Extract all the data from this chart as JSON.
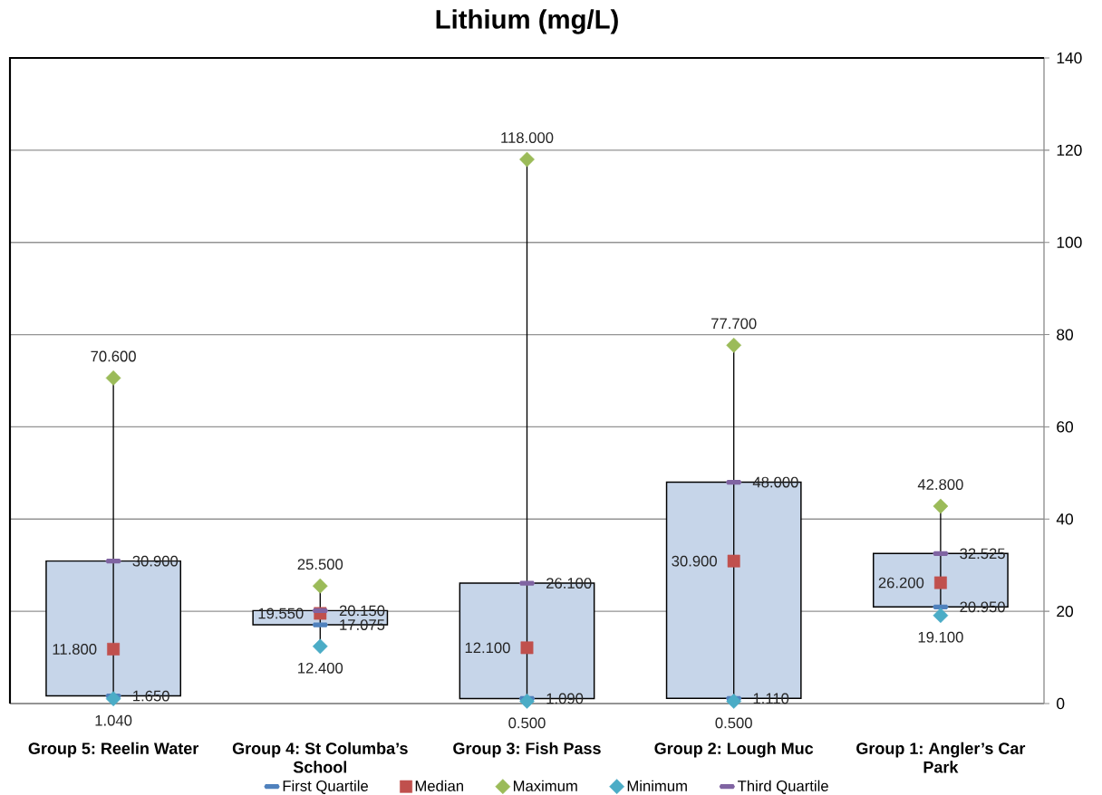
{
  "chart_data": {
    "type": "box",
    "title": "Lithium (mg/L)",
    "categories": [
      "Group 5: Reelin Water",
      "Group 4: St Columba’s School",
      "Group 3: Fish Pass",
      "Group 2: Lough Muc",
      "Group 1: Angler’s Car Park"
    ],
    "color": "#c6d5e9",
    "boxes": [
      {
        "low": 1.04,
        "q1": 1.65,
        "q3": 30.9,
        "high": 70.6
      },
      {
        "low": 12.4,
        "q1": 17.075,
        "q3": 20.15,
        "high": 25.5
      },
      {
        "low": 0.5,
        "q1": 1.09,
        "q3": 26.1,
        "high": 118
      },
      {
        "low": 0.5,
        "q1": 1.11,
        "q3": 48,
        "high": 77.7
      },
      {
        "low": 19.1,
        "q1": 20.95,
        "q3": 32.525,
        "high": 42.8
      }
    ],
    "series": [
      {
        "name": "First Quartile",
        "type": "scatter",
        "color": "#4f81bd",
        "values": [
          1.65,
          17.075,
          1.09,
          1.11,
          20.95
        ],
        "value_labels": [
          "1.650",
          "17.075",
          "1.090",
          "1.110",
          "20.950"
        ]
      },
      {
        "name": "Median",
        "type": "scatter",
        "color": "#c0504d",
        "marker": "square",
        "values": [
          11.8,
          19.55,
          12.1,
          30.9,
          26.2
        ],
        "value_labels": [
          "11.800",
          "19.550",
          "12.100",
          "30.900",
          "26.200"
        ]
      },
      {
        "name": "Maximum",
        "type": "scatter",
        "color": "#9bbb59",
        "marker": "diamond",
        "values": [
          70.6,
          25.5,
          118,
          77.7,
          42.8
        ],
        "value_labels": [
          "70.600",
          "25.500",
          "118.000",
          "77.700",
          "42.800"
        ]
      },
      {
        "name": "Minimum",
        "type": "scatter",
        "color": "#4bacc6",
        "marker": "diamond",
        "values": [
          1.04,
          12.4,
          0.5,
          0.5,
          19.1
        ],
        "value_labels": [
          "1.040",
          "12.400",
          "0.500",
          "0.500",
          "19.100"
        ]
      },
      {
        "name": "Third Quartile",
        "type": "scatter",
        "color": "#8064a2",
        "values": [
          30.9,
          20.15,
          26.1,
          48,
          32.525
        ],
        "value_labels": [
          "30.900",
          "20.150",
          "26.100",
          "48.000",
          "32.525"
        ]
      }
    ],
    "ylim": [
      0,
      140
    ],
    "yticks": [
      0,
      20,
      40,
      60,
      80,
      100,
      120,
      140
    ],
    "grid": "y",
    "legend": "bottom"
  }
}
